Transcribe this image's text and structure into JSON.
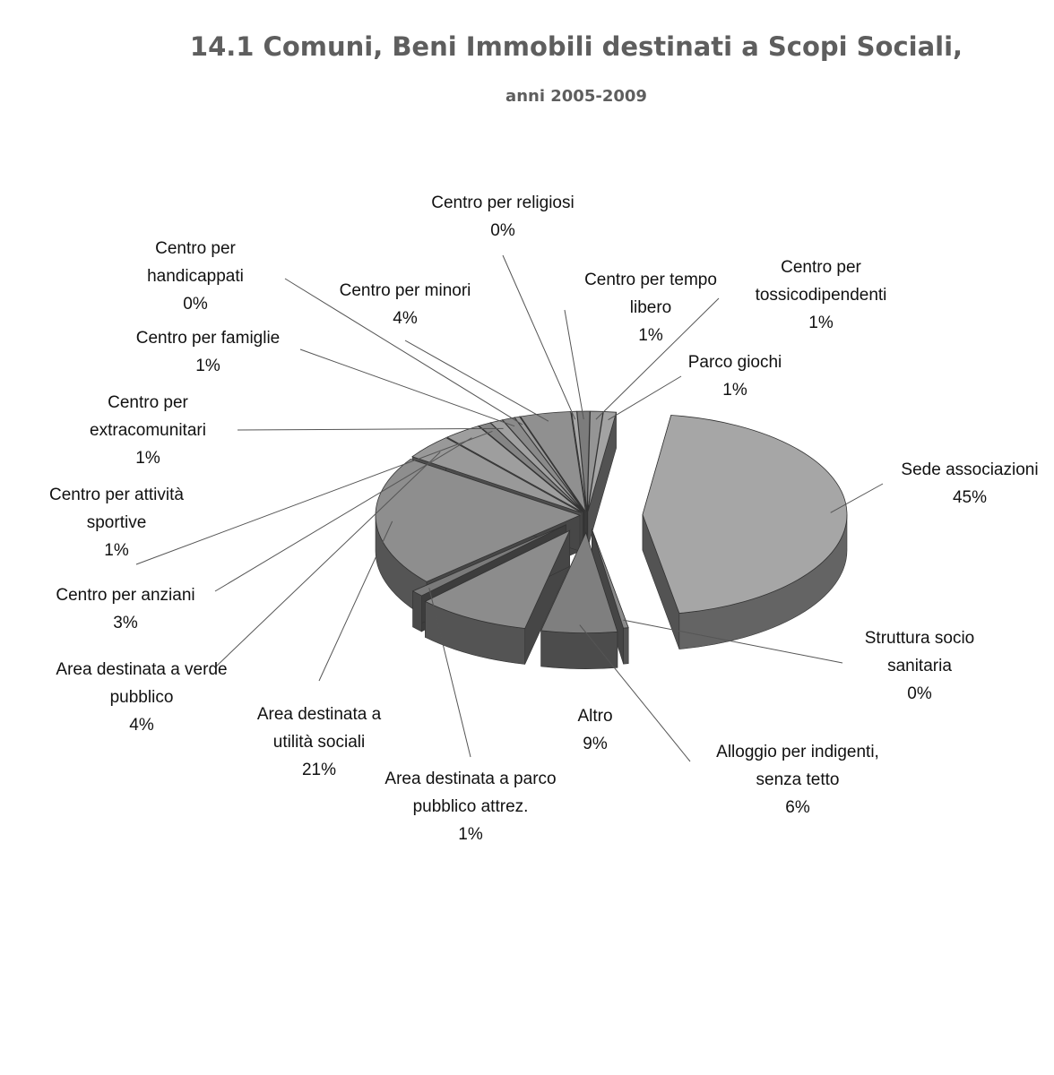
{
  "chart_data": {
    "type": "pie",
    "title": "14.1 Comuni, Beni Immobili destinati a Scopi Sociali,",
    "subtitle": "anni 2005-2009",
    "slices": [
      {
        "label": [
          "Sede associazioni"
        ],
        "pct_label": "45%",
        "value": 45,
        "color": "#a6a6a6"
      },
      {
        "label": [
          "Struttura socio",
          "sanitaria"
        ],
        "pct_label": "0%",
        "value": 0.4,
        "color": "#8a8a8a"
      },
      {
        "label": [
          "Alloggio per indigenti,",
          "senza tetto"
        ],
        "pct_label": "6%",
        "value": 6,
        "color": "#7f7f7f"
      },
      {
        "label": [
          "Altro"
        ],
        "pct_label": "9%",
        "value": 9,
        "color": "#8c8c8c"
      },
      {
        "label": [
          "Area destinata a parco",
          "pubblico attrez."
        ],
        "pct_label": "1%",
        "value": 1,
        "color": "#7a7a7a"
      },
      {
        "label": [
          "Area destinata a",
          "utilità sociali"
        ],
        "pct_label": "21%",
        "value": 21,
        "color": "#8e8e8e"
      },
      {
        "label": [
          "Area destinata a verde",
          "pubblico"
        ],
        "pct_label": "4%",
        "value": 4,
        "color": "#999999"
      },
      {
        "label": [
          "Centro per anziani"
        ],
        "pct_label": "3%",
        "value": 3,
        "color": "#9e9e9e"
      },
      {
        "label": [
          "Centro per attività",
          "sportive"
        ],
        "pct_label": "1%",
        "value": 1,
        "color": "#858585"
      },
      {
        "label": [
          "Centro per",
          "extracomunitari"
        ],
        "pct_label": "1%",
        "value": 1,
        "color": "#a0a0a0"
      },
      {
        "label": [
          "Centro per famiglie"
        ],
        "pct_label": "1%",
        "value": 1,
        "color": "#8a8a8a"
      },
      {
        "label": [
          "Centro per",
          "handicappati"
        ],
        "pct_label": "0%",
        "value": 0.4,
        "color": "#9a9a9a"
      },
      {
        "label": [
          "Centro per minori"
        ],
        "pct_label": "4%",
        "value": 4,
        "color": "#909090"
      },
      {
        "label": [
          "Centro per religiosi"
        ],
        "pct_label": "0%",
        "value": 0.4,
        "color": "#a8a8a8"
      },
      {
        "label": [
          "Centro per tempo",
          "libero"
        ],
        "pct_label": "1%",
        "value": 1,
        "color": "#7c7c7c"
      },
      {
        "label": [
          "Centro per",
          "tossicodipendenti"
        ],
        "pct_label": "1%",
        "value": 1,
        "color": "#959595"
      },
      {
        "label": [
          "Parco giochi"
        ],
        "pct_label": "1%",
        "value": 1,
        "color": "#a3a3a3"
      }
    ]
  }
}
